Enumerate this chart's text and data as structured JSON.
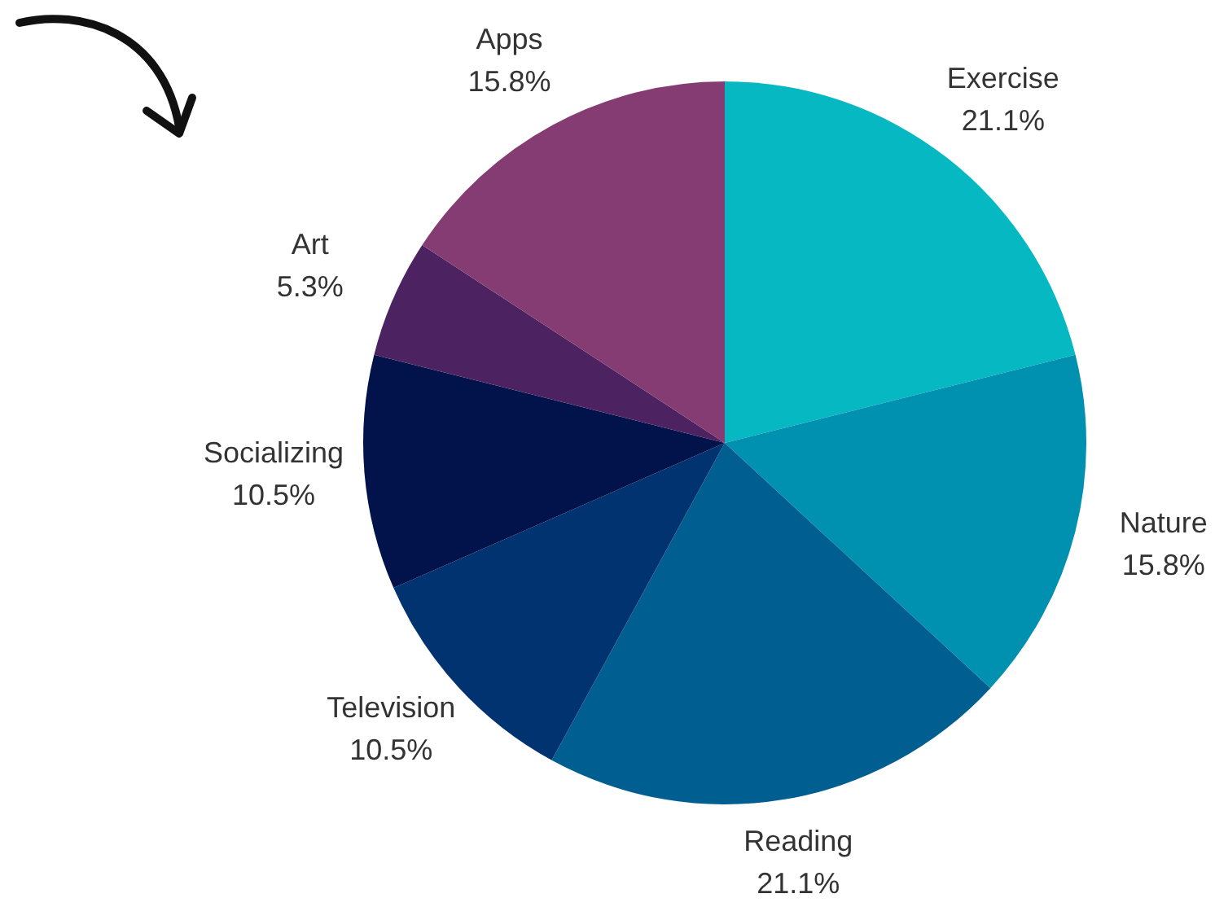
{
  "chart_data": {
    "type": "pie",
    "categories": [
      "Exercise",
      "Nature",
      "Reading",
      "Television",
      "Socializing",
      "Art",
      "Apps"
    ],
    "values": [
      21.1,
      15.8,
      21.1,
      10.5,
      10.5,
      5.3,
      15.8
    ],
    "colors": [
      "#06b8c1",
      "#0090b0",
      "#005f90",
      "#003370",
      "#02124a",
      "#4c2260",
      "#853c72"
    ],
    "value_labels": [
      "21.1%",
      "15.8%",
      "21.1%",
      "10.5%",
      "10.5%",
      "5.3%",
      "15.8%"
    ],
    "legend": false
  }
}
